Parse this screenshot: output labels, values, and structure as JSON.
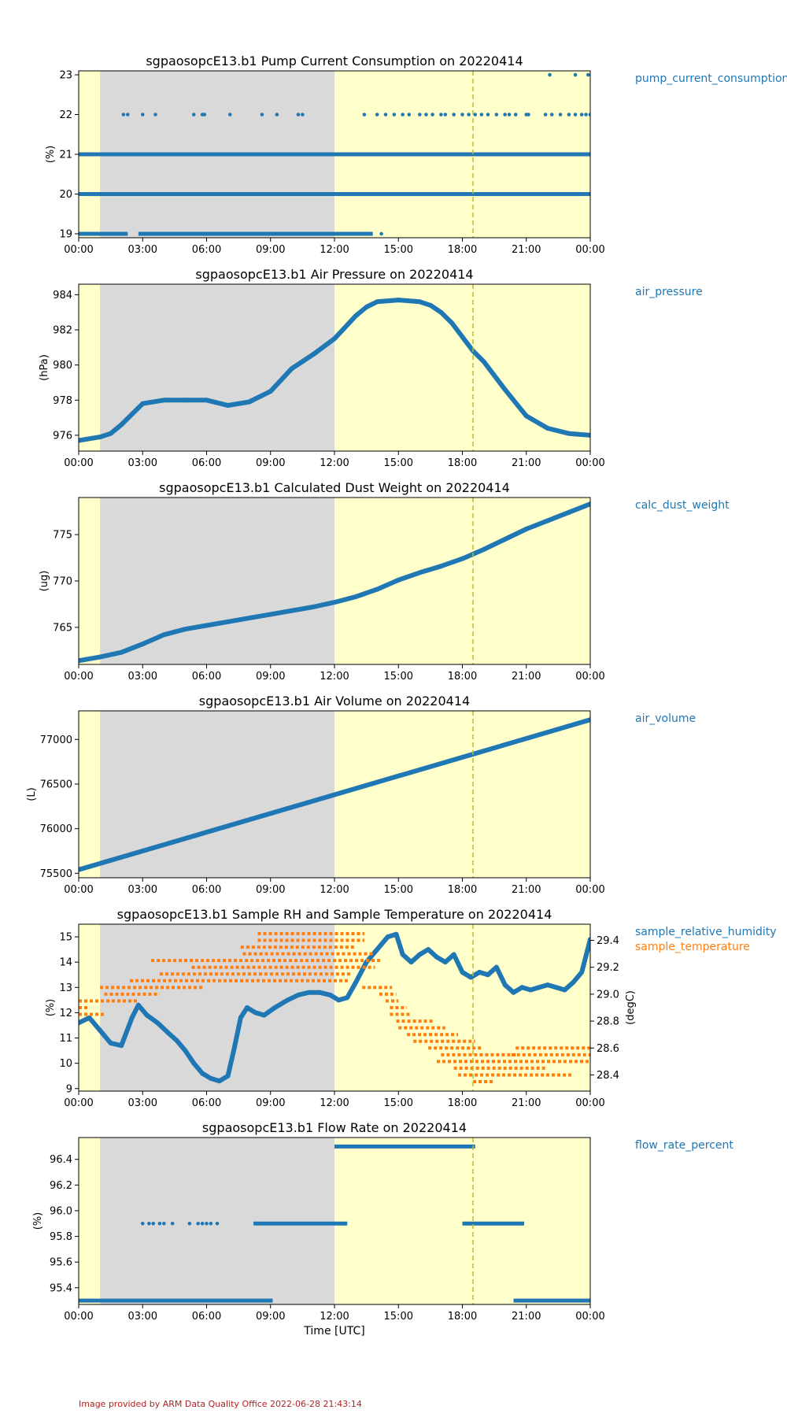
{
  "figure": {
    "x_tick_labels": [
      "00:00",
      "03:00",
      "06:00",
      "09:00",
      "12:00",
      "15:00",
      "18:00",
      "21:00",
      "00:00"
    ],
    "xlabel": "Time [UTC]",
    "footer": "Image provided by ARM Data Quality Office 2022-06-28 21:43:14",
    "colors": {
      "blue": "#1f77b4",
      "orange": "#ff7f0e",
      "night_shade": "#d9d9d9",
      "day_shade": "#ffffcc",
      "marker_line": "#bcbd22",
      "legend_blue": "#1f77b4",
      "legend_orange": "#ff7f0e",
      "footer": "#b22222"
    }
  },
  "chart_data": [
    {
      "type": "scatter",
      "title": "sgpaosopcE13.b1 Pump Current Consumption on 20220414",
      "ylabel": "(%)",
      "ylim": [
        18.9,
        23.1
      ],
      "y_ticks": [
        19,
        20,
        21,
        22,
        23
      ],
      "xlim_hours": [
        0,
        24
      ],
      "night_shading_hours": [
        1.0,
        12.0
      ],
      "marker_hour": 18.5,
      "series": [
        {
          "name": "pump_current_consumption",
          "color": "#1f77b4",
          "levels": [
            {
              "y": 20,
              "segments": [
                [
                  0,
                  24
                ]
              ]
            },
            {
              "y": 21,
              "segments": [
                [
                  0,
                  24
                ]
              ]
            },
            {
              "y": 19,
              "segments": [
                [
                  0,
                  2.3
                ],
                [
                  2.8,
                  13.8
                ]
              ],
              "extra_points": [
                14.2
              ]
            },
            {
              "y": 22,
              "points": [
                2.1,
                2.3,
                3.0,
                3.6,
                5.4,
                5.8,
                5.9,
                7.1,
                8.6,
                9.3,
                10.3,
                10.5,
                13.4,
                14.0,
                14.4,
                14.8,
                15.2,
                15.5,
                16.0,
                16.3,
                16.6,
                17.0,
                17.2,
                17.6,
                18.0,
                18.3,
                18.6,
                18.9,
                19.2,
                19.6,
                20.0,
                20.2,
                20.5,
                21.0,
                21.1,
                21.9,
                22.2,
                22.6,
                23.0,
                23.3,
                23.6,
                23.8,
                24.0
              ]
            },
            {
              "y": 23,
              "points": [
                22.1,
                23.3,
                23.9
              ]
            }
          ]
        }
      ]
    },
    {
      "type": "scatter",
      "title": "sgpaosopcE13.b1 Air Pressure on 20220414",
      "ylabel": "(hPa)",
      "ylim": [
        975.1,
        984.6
      ],
      "y_ticks": [
        976,
        978,
        980,
        982,
        984
      ],
      "xlim_hours": [
        0,
        24
      ],
      "night_shading_hours": [
        1.0,
        12.0
      ],
      "marker_hour": 18.5,
      "series": [
        {
          "name": "air_pressure",
          "color": "#1f77b4",
          "x": [
            0,
            1,
            1.5,
            2,
            2.5,
            3,
            4,
            5,
            6,
            7,
            8,
            9,
            10,
            11,
            12,
            13,
            13.5,
            14,
            15,
            16,
            16.5,
            17,
            17.5,
            18,
            18.5,
            19,
            20,
            21,
            22,
            23,
            24
          ],
          "y": [
            975.7,
            975.9,
            976.1,
            976.6,
            977.2,
            977.8,
            978.0,
            978.0,
            978.0,
            977.7,
            977.9,
            978.5,
            979.8,
            980.6,
            981.5,
            982.8,
            983.3,
            983.6,
            983.7,
            983.6,
            983.4,
            983.0,
            982.4,
            981.6,
            980.8,
            980.2,
            978.6,
            977.1,
            976.4,
            976.1,
            976.0
          ]
        }
      ]
    },
    {
      "type": "scatter",
      "title": "sgpaosopcE13.b1 Calculated Dust Weight on 20220414",
      "ylabel": "(ug)",
      "ylim": [
        761.0,
        779.0
      ],
      "y_ticks": [
        765,
        770,
        775
      ],
      "xlim_hours": [
        0,
        24
      ],
      "night_shading_hours": [
        1.0,
        12.0
      ],
      "marker_hour": 18.5,
      "series": [
        {
          "name": "calc_dust_weight",
          "color": "#1f77b4",
          "x": [
            0,
            1,
            2,
            3,
            4,
            5,
            6,
            7,
            8,
            9,
            10,
            11,
            12,
            13,
            14,
            15,
            16,
            17,
            18,
            19,
            20,
            21,
            22,
            23,
            24
          ],
          "y": [
            761.4,
            761.8,
            762.3,
            763.2,
            764.2,
            764.8,
            765.2,
            765.6,
            766.0,
            766.4,
            766.8,
            767.2,
            767.7,
            768.3,
            769.1,
            770.1,
            770.9,
            771.6,
            772.4,
            773.4,
            774.5,
            775.6,
            776.5,
            777.4,
            778.3
          ]
        }
      ]
    },
    {
      "type": "scatter",
      "title": "sgpaosopcE13.b1 Air Volume on 20220414",
      "ylabel": "(L)",
      "ylim": [
        75450,
        77320
      ],
      "y_ticks": [
        75500,
        76000,
        76500,
        77000
      ],
      "xlim_hours": [
        0,
        24
      ],
      "night_shading_hours": [
        1.0,
        12.0
      ],
      "marker_hour": 18.5,
      "series": [
        {
          "name": "air_volume",
          "color": "#1f77b4",
          "x": [
            0,
            24
          ],
          "y": [
            75540,
            77220
          ]
        }
      ]
    },
    {
      "type": "scatter",
      "title": "sgpaosopcE13.b1 Sample RH and Sample Temperature on 20220414",
      "ylabel": "(%)",
      "ylabel_right": "(degC)",
      "ylim": [
        8.9,
        15.5
      ],
      "y_ticks": [
        9,
        10,
        11,
        12,
        13,
        14,
        15
      ],
      "ylim_right": [
        28.28,
        29.52
      ],
      "y_ticks_right": [
        28.4,
        28.6,
        28.8,
        29.0,
        29.2,
        29.4
      ],
      "xlim_hours": [
        0,
        24
      ],
      "night_shading_hours": [
        1.0,
        12.0
      ],
      "marker_hour": 18.5,
      "series": [
        {
          "name": "sample_relative_humidity",
          "color": "#1f77b4",
          "axis": "left",
          "x": [
            0,
            0.5,
            1.0,
            1.5,
            2.0,
            2.5,
            2.8,
            3.2,
            3.7,
            4.2,
            4.6,
            5.0,
            5.4,
            5.8,
            6.2,
            6.6,
            7.0,
            7.3,
            7.6,
            7.9,
            8.3,
            8.7,
            9.2,
            9.8,
            10.3,
            10.8,
            11.3,
            11.8,
            12.2,
            12.6,
            13.0,
            13.5,
            14.0,
            14.5,
            14.9,
            15.2,
            15.6,
            16.0,
            16.4,
            16.8,
            17.2,
            17.6,
            18.0,
            18.4,
            18.8,
            19.2,
            19.6,
            20.0,
            20.4,
            20.8,
            21.2,
            21.6,
            22.0,
            22.4,
            22.8,
            23.2,
            23.6,
            24.0
          ],
          "y": [
            11.6,
            11.8,
            11.3,
            10.8,
            10.7,
            11.8,
            12.3,
            11.9,
            11.6,
            11.2,
            10.9,
            10.5,
            10.0,
            9.6,
            9.4,
            9.3,
            9.5,
            10.6,
            11.8,
            12.2,
            12.0,
            11.9,
            12.2,
            12.5,
            12.7,
            12.8,
            12.8,
            12.7,
            12.5,
            12.6,
            13.2,
            14.0,
            14.5,
            15.0,
            15.1,
            14.3,
            14.0,
            14.3,
            14.5,
            14.2,
            14.0,
            14.3,
            13.6,
            13.4,
            13.6,
            13.5,
            13.8,
            13.1,
            12.8,
            13.0,
            12.9,
            13.0,
            13.1,
            13.0,
            12.9,
            13.2,
            13.6,
            14.9
          ]
        },
        {
          "name": "sample_temperature",
          "color": "#ff7f0e",
          "axis": "right",
          "bands": [
            {
              "y": 28.9,
              "segments": [
                [
                  0,
                  0.5
                ]
              ]
            },
            {
              "y": 28.85,
              "segments": [
                [
                  0,
                  1.2
                ]
              ]
            },
            {
              "y": 28.95,
              "segments": [
                [
                  0,
                  2.8
                ]
              ]
            },
            {
              "y": 29.0,
              "segments": [
                [
                  1.2,
                  3.8
                ]
              ]
            },
            {
              "y": 29.05,
              "segments": [
                [
                  1.0,
                  5.8
                ]
              ]
            },
            {
              "y": 29.1,
              "segments": [
                [
                  2.4,
                  12.7
                ]
              ]
            },
            {
              "y": 29.15,
              "segments": [
                [
                  3.8,
                  12.8
                ]
              ]
            },
            {
              "y": 29.2,
              "segments": [
                [
                  5.3,
                  13.9
                ]
              ]
            },
            {
              "y": 29.25,
              "segments": [
                [
                  3.4,
                  14.2
                ]
              ]
            },
            {
              "y": 29.3,
              "segments": [
                [
                  7.7,
                  13.8
                ]
              ]
            },
            {
              "y": 29.35,
              "segments": [
                [
                  7.6,
                  13.0
                ]
              ]
            },
            {
              "y": 29.4,
              "segments": [
                [
                  8.4,
                  13.4
                ]
              ]
            },
            {
              "y": 29.45,
              "segments": [
                [
                  8.4,
                  13.4
                ]
              ]
            },
            {
              "y": 29.05,
              "segments": [
                [
                  13.3,
                  14.7
                ]
              ]
            },
            {
              "y": 29.0,
              "segments": [
                [
                  14.1,
                  14.9
                ]
              ]
            },
            {
              "y": 28.95,
              "segments": [
                [
                  14.4,
                  15.0
                ]
              ]
            },
            {
              "y": 28.9,
              "segments": [
                [
                  14.6,
                  15.4
                ]
              ]
            },
            {
              "y": 28.85,
              "segments": [
                [
                  14.6,
                  15.6
                ]
              ]
            },
            {
              "y": 28.8,
              "segments": [
                [
                  14.9,
                  16.6
                ]
              ]
            },
            {
              "y": 28.75,
              "segments": [
                [
                  15.0,
                  17.2
                ]
              ]
            },
            {
              "y": 28.7,
              "segments": [
                [
                  15.4,
                  17.8
                ]
              ]
            },
            {
              "y": 28.65,
              "segments": [
                [
                  15.7,
                  18.6
                ]
              ]
            },
            {
              "y": 28.6,
              "segments": [
                [
                  16.4,
                  18.9
                ],
                [
                  20.5,
                  24.0
                ]
              ]
            },
            {
              "y": 28.55,
              "segments": [
                [
                  17.0,
                  20.6
                ],
                [
                  20.3,
                  24.0
                ]
              ]
            },
            {
              "y": 28.5,
              "segments": [
                [
                  16.8,
                  24.0
                ]
              ]
            },
            {
              "y": 28.45,
              "segments": [
                [
                  17.6,
                  21.9
                ]
              ]
            },
            {
              "y": 28.4,
              "segments": [
                [
                  17.8,
                  23.2
                ]
              ]
            },
            {
              "y": 28.35,
              "segments": [
                [
                  18.5,
                  19.5
                ]
              ]
            }
          ]
        }
      ]
    },
    {
      "type": "scatter",
      "title": "sgpaosopcE13.b1 Flow Rate on 20220414",
      "ylabel": "(%)",
      "ylim": [
        95.27,
        96.57
      ],
      "y_ticks": [
        95.4,
        95.6,
        95.8,
        96.0,
        96.2,
        96.4
      ],
      "xlim_hours": [
        0,
        24
      ],
      "night_shading_hours": [
        1.0,
        12.0
      ],
      "marker_hour": 18.5,
      "series": [
        {
          "name": "flow_rate_percent",
          "color": "#1f77b4",
          "levels": [
            {
              "y": 95.3,
              "segments": [
                [
                  0,
                  9.1
                ],
                [
                  20.4,
                  24.0
                ]
              ]
            },
            {
              "y": 95.9,
              "segments": [
                [
                  8.2,
                  12.6
                ],
                [
                  18.0,
                  20.9
                ]
              ],
              "points": [
                3.0,
                3.3,
                3.5,
                3.8,
                4.0,
                4.4,
                5.2,
                5.6,
                5.8,
                6.0,
                6.2,
                6.5
              ]
            },
            {
              "y": 96.5,
              "segments": [
                [
                  12.0,
                  18.6
                ]
              ]
            }
          ]
        }
      ]
    }
  ]
}
